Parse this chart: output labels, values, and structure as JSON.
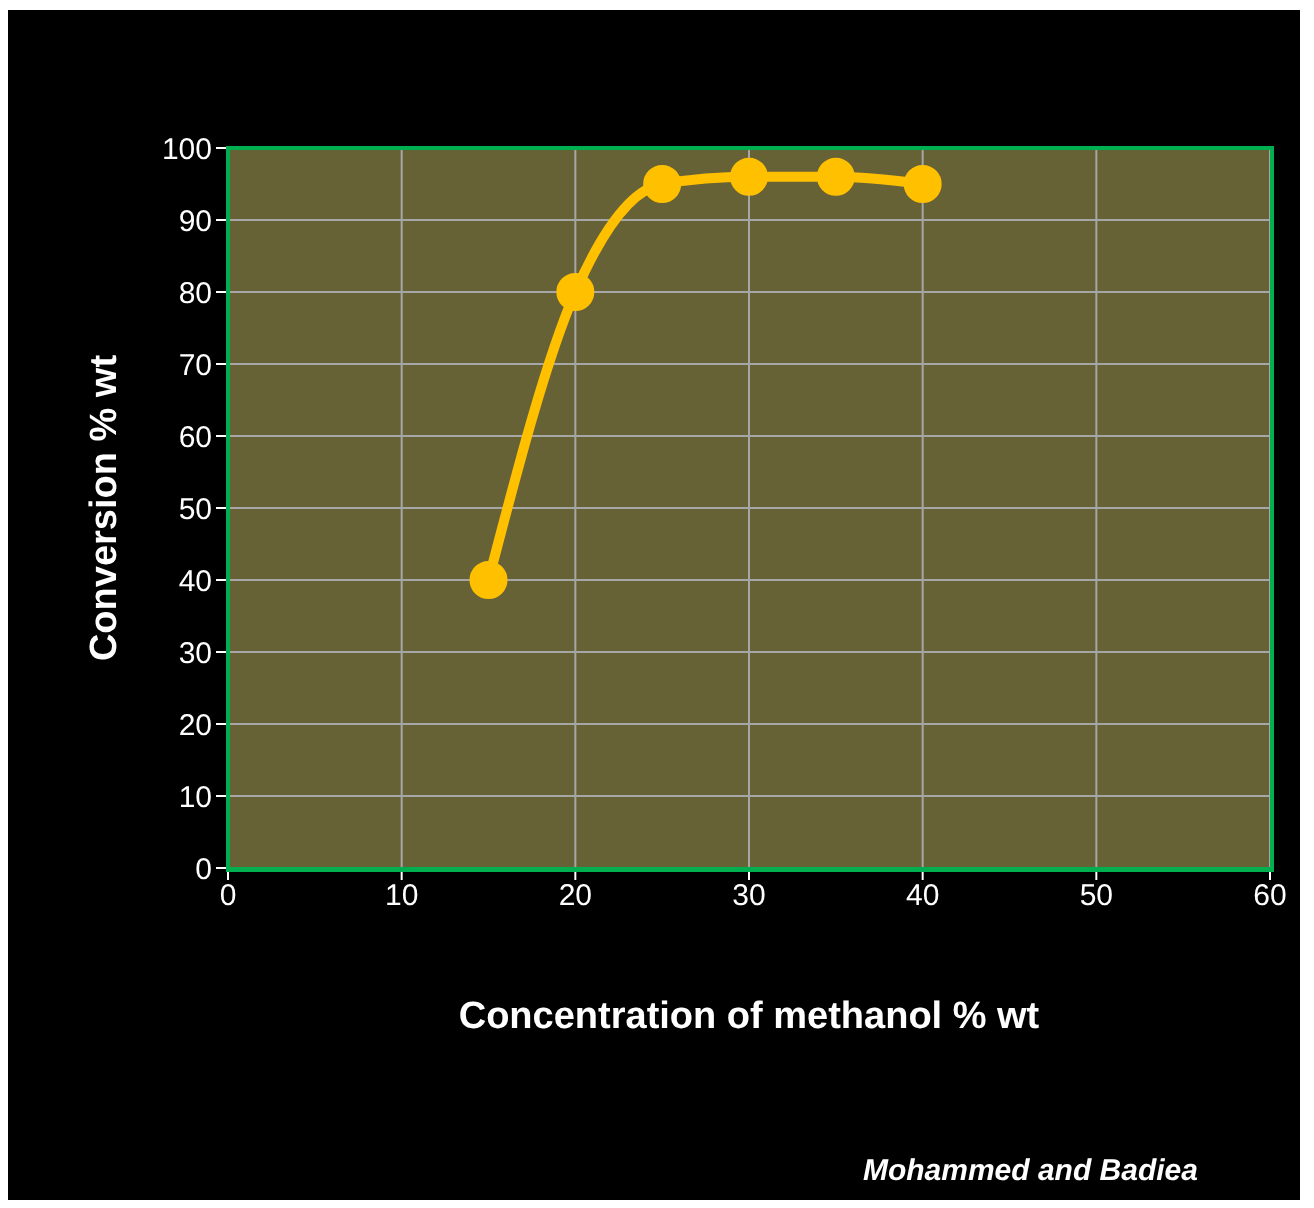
{
  "chart_data": {
    "type": "line",
    "xlabel": "Concentration of methanol % wt",
    "ylabel": "Conversion % wt",
    "x": [
      15,
      20,
      25,
      30,
      35,
      40
    ],
    "series": [
      {
        "color": "#ffc000",
        "values": [
          40,
          80,
          95,
          96,
          96,
          95
        ]
      }
    ],
    "xlim": [
      0,
      60
    ],
    "xticks": [
      0,
      10,
      20,
      30,
      40,
      50,
      60
    ],
    "ylim": [
      0,
      100
    ],
    "yticks": [
      0,
      10,
      20,
      30,
      40,
      50,
      60,
      70,
      80,
      90,
      100
    ],
    "grid": true,
    "legend": false,
    "marker": "circle",
    "line_style": "solid",
    "annotations": [
      "Mohammed and Badiea"
    ]
  }
}
